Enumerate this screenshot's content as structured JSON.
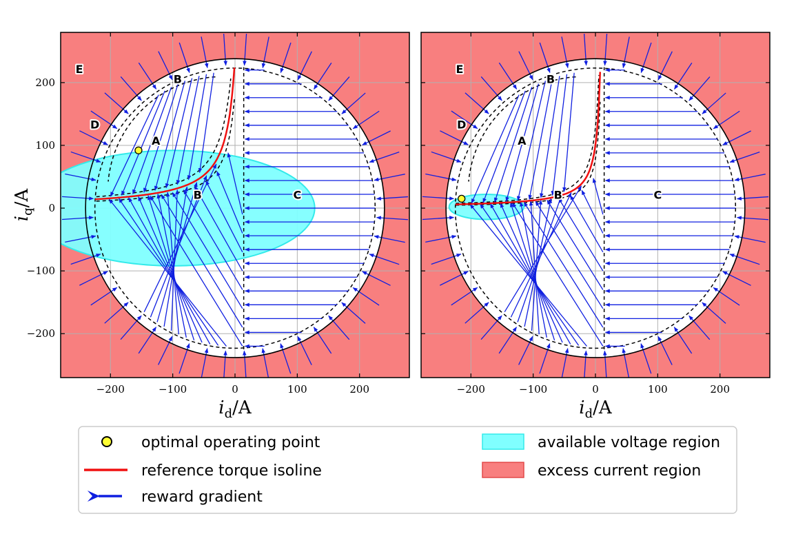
{
  "chart_data": [
    {
      "type": "vector-field",
      "panel": "left",
      "xlabel_sym": "i",
      "xlabel_sub": "d",
      "xlabel_unit": "/A",
      "ylabel_sym": "i",
      "ylabel_sub": "q",
      "ylabel_unit": "/A",
      "xlim": [
        -280,
        280
      ],
      "ylim": [
        -270,
        280
      ],
      "xticks": [
        -200,
        -100,
        0,
        100,
        200
      ],
      "yticks": [
        -200,
        -100,
        0,
        100,
        200
      ],
      "xtick_labels": [
        "−200",
        "−100",
        "0",
        "100",
        "200"
      ],
      "ytick_labels": [
        "−200",
        "−100",
        "0",
        "100",
        "200"
      ],
      "grid": true,
      "limit_radius": 240,
      "inner_radius": 225,
      "mtpc_threshold_id": 14,
      "torque_ref": 1.0,
      "voltage_region": {
        "cx": -100,
        "cy": 0,
        "rx": 228,
        "ry": 92
      },
      "optimal_point": [
        -155,
        92
      ],
      "region_labels": [
        {
          "text": "A",
          "x": -127,
          "y": 106
        },
        {
          "text": "B",
          "x": -92,
          "y": 204
        },
        {
          "text": "B",
          "x": -60,
          "y": 20
        },
        {
          "text": "C",
          "x": 100,
          "y": 20
        },
        {
          "text": "D",
          "x": -225,
          "y": 132
        },
        {
          "text": "E",
          "x": -250,
          "y": 220
        }
      ]
    },
    {
      "type": "vector-field",
      "panel": "right",
      "xlabel_sym": "i",
      "xlabel_sub": "d",
      "xlabel_unit": "/A",
      "xlim": [
        -280,
        280
      ],
      "ylim": [
        -270,
        280
      ],
      "xticks": [
        -200,
        -100,
        0,
        100,
        200
      ],
      "yticks": [
        -200,
        -100,
        0,
        100,
        200
      ],
      "xtick_labels": [
        "−200",
        "−100",
        "0",
        "100",
        "200"
      ],
      "grid": true,
      "limit_radius": 240,
      "inner_radius": 225,
      "mtpc_threshold_id": 14,
      "torque_ref": 0.42,
      "voltage_region": {
        "cx": -175,
        "cy": 2,
        "rx": 60,
        "ry": 20
      },
      "optimal_point": [
        -215,
        15
      ],
      "region_labels": [
        {
          "text": "A",
          "x": -118,
          "y": 106
        },
        {
          "text": "B",
          "x": -72,
          "y": 204
        },
        {
          "text": "B",
          "x": -60,
          "y": 20
        },
        {
          "text": "C",
          "x": 100,
          "y": 20
        },
        {
          "text": "D",
          "x": -215,
          "y": 132
        },
        {
          "text": "E",
          "x": -218,
          "y": 220
        }
      ]
    }
  ],
  "legend": {
    "items": [
      {
        "label": "optimal operating point",
        "marker": "circle"
      },
      {
        "label": "reference torque isoline",
        "marker": "line"
      },
      {
        "label": "reward gradient",
        "marker": "arrow"
      },
      {
        "label": "available voltage region",
        "marker": "patch-voltage"
      },
      {
        "label": "excess current region",
        "marker": "patch-current"
      }
    ]
  },
  "colors": {
    "excess": "#f87f7f",
    "voltage_fill": "#80ffff",
    "voltage_edge": "#33eaea",
    "arrow": "#0f1fe0",
    "torque": "#f01010",
    "point": "#ffff33",
    "grid": "#b0b0b0"
  }
}
